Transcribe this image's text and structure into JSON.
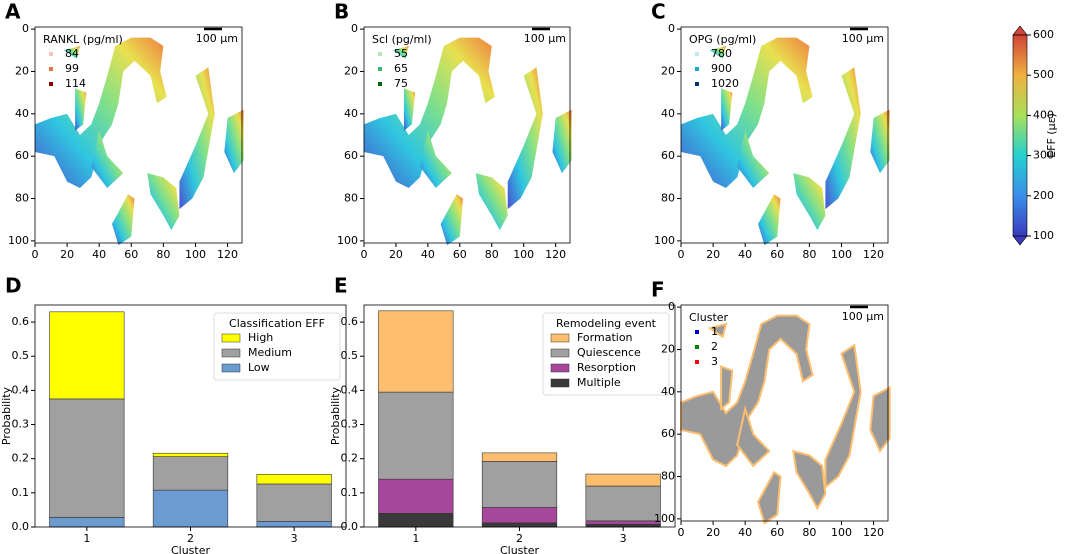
{
  "chart_data": [
    {
      "type": "map",
      "label": "A",
      "legend_title": "RANKL (pg/ml)",
      "legend": [
        {
          "name": "84",
          "color": "#f4c6bd"
        },
        {
          "name": "99",
          "color": "#e8743b"
        },
        {
          "name": "114",
          "color": "#8b0000"
        }
      ],
      "scalebar": "100 µm",
      "fill": "gradient",
      "xlim": [
        0,
        129
      ],
      "ylim": [
        -1,
        101
      ],
      "y_inverted": true,
      "xticks": [
        0,
        20,
        40,
        60,
        80,
        100,
        120
      ],
      "yticks": [
        0,
        20,
        40,
        60,
        80,
        100
      ]
    },
    {
      "type": "map",
      "label": "B",
      "legend_title": "Scl (pg/ml)",
      "legend": [
        {
          "name": "55",
          "color": "#b8e6b8"
        },
        {
          "name": "65",
          "color": "#3cb371"
        },
        {
          "name": "75",
          "color": "#006400"
        }
      ],
      "scalebar": "100 µm",
      "fill": "gradient",
      "xlim": [
        0,
        129
      ],
      "ylim": [
        -1,
        101
      ],
      "y_inverted": true,
      "xticks": [
        0,
        20,
        40,
        60,
        80,
        100,
        120
      ],
      "yticks": [
        0,
        20,
        40,
        60,
        80,
        100
      ]
    },
    {
      "type": "map",
      "label": "C",
      "legend_title": "OPG (pg/ml)",
      "legend": [
        {
          "name": "780",
          "color": "#c0e8f5"
        },
        {
          "name": "900",
          "color": "#17a8cf"
        },
        {
          "name": "1020",
          "color": "#08306b"
        }
      ],
      "scalebar": "100 µm",
      "fill": "gradient",
      "xlim": [
        0,
        129
      ],
      "ylim": [
        -1,
        101
      ],
      "y_inverted": true,
      "xticks": [
        0,
        20,
        40,
        60,
        80,
        100,
        120
      ],
      "yticks": [
        0,
        20,
        40,
        60,
        80,
        100
      ]
    },
    {
      "type": "colorbar",
      "label": "EFF (µε)",
      "ylim": [
        100,
        600
      ],
      "yticks": [
        100,
        200,
        300,
        400,
        500,
        600
      ]
    },
    {
      "type": "bar",
      "label": "D",
      "legend_title": "Classification EFF",
      "xlabel": "Cluster",
      "ylabel": "Probability",
      "categories": [
        "1",
        "2",
        "3"
      ],
      "series": [
        {
          "name": "High",
          "color": "#ffff00",
          "values": [
            0.255,
            0.01,
            0.028
          ]
        },
        {
          "name": "Medium",
          "color": "#a0a0a0",
          "values": [
            0.347,
            0.098,
            0.11
          ]
        },
        {
          "name": "Low",
          "color": "#6b9bd1",
          "values": [
            0.028,
            0.108,
            0.016
          ]
        }
      ],
      "ylim": [
        0,
        0.65
      ],
      "yticks": [
        {
          "value": 0,
          "label": "0.0"
        },
        0.1,
        0.2,
        0.3,
        0.4,
        0.5,
        0.6
      ]
    },
    {
      "type": "bar",
      "label": "E",
      "legend_title": "Remodeling event",
      "xlabel": "Cluster",
      "ylabel": "Probability",
      "categories": [
        "1",
        "2",
        "3"
      ],
      "series": [
        {
          "name": "Formation",
          "color": "#fdbf6f",
          "values": [
            0.238,
            0.025,
            0.035
          ]
        },
        {
          "name": "Quiescence",
          "color": "#a0a0a0",
          "values": [
            0.255,
            0.135,
            0.102
          ]
        },
        {
          "name": "Resorption",
          "color": "#a7479c",
          "values": [
            0.1,
            0.045,
            0.01
          ]
        },
        {
          "name": "Multiple",
          "color": "#3a3a3a",
          "values": [
            0.04,
            0.012,
            0.008
          ]
        }
      ],
      "ylim": [
        0,
        0.65
      ],
      "yticks": [
        {
          "value": 0,
          "label": "0.0"
        },
        0.1,
        0.2,
        0.3,
        0.4,
        0.5,
        0.6
      ]
    },
    {
      "type": "map",
      "label": "F",
      "legend_title": "Cluster",
      "legend": [
        {
          "name": "1",
          "color": "#0000cc"
        },
        {
          "name": "2",
          "color": "#008000"
        },
        {
          "name": "3",
          "color": "#ff0000"
        }
      ],
      "scalebar": "100 µm",
      "fill": "grey",
      "xlim": [
        0,
        129
      ],
      "ylim": [
        -1,
        101
      ],
      "y_inverted": true,
      "xticks": [
        0,
        20,
        40,
        60,
        80,
        100,
        120
      ],
      "yticks": [
        0,
        20,
        40,
        60,
        80,
        100
      ]
    }
  ]
}
